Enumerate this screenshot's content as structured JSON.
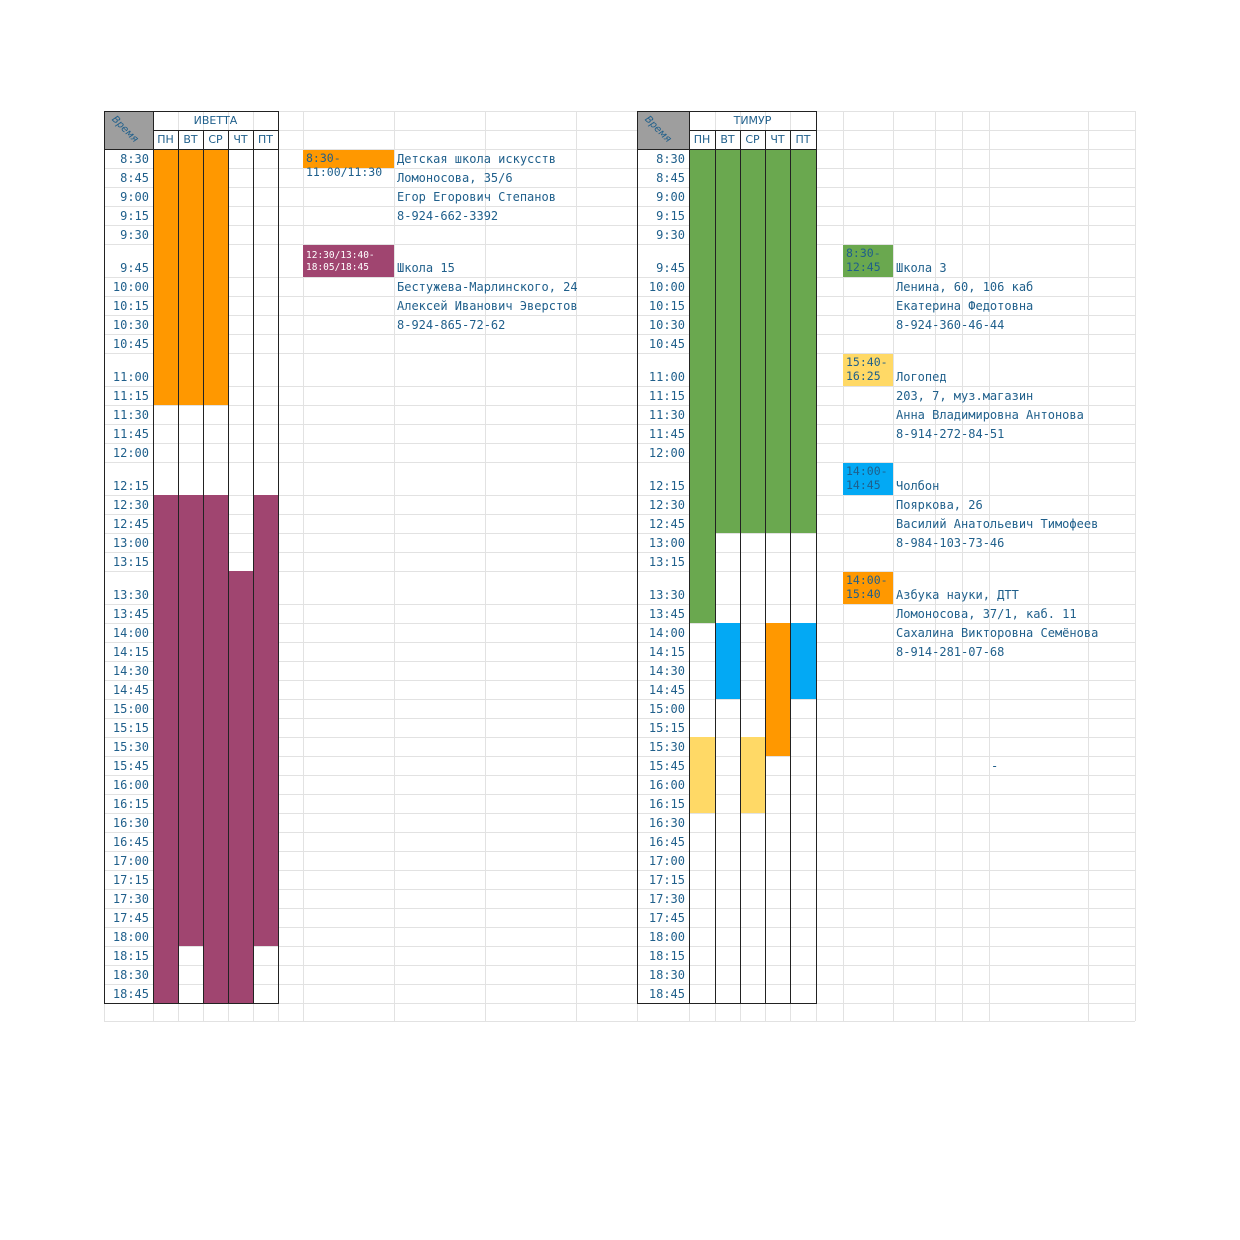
{
  "colors": {
    "orange": "#ff9800",
    "plum": "#a04570",
    "green": "#6aa84f",
    "blue": "#03a9f4",
    "yellow": "#ffd966",
    "header_gray": "#9e9e9e",
    "text": "#1f5f8b"
  },
  "time_header": "Время",
  "days": [
    "ПН",
    "ВТ",
    "СР",
    "ЧТ",
    "ПТ"
  ],
  "times": [
    "8:30",
    "8:45",
    "9:00",
    "9:15",
    "9:30",
    "9:45",
    "10:00",
    "10:15",
    "10:30",
    "10:45",
    "11:00",
    "11:15",
    "11:30",
    "11:45",
    "12:00",
    "12:15",
    "12:30",
    "12:45",
    "13:00",
    "13:15",
    "13:30",
    "13:45",
    "14:00",
    "14:15",
    "14:30",
    "14:45",
    "15:00",
    "15:15",
    "15:30",
    "15:45",
    "16:00",
    "16:15",
    "16:30",
    "16:45",
    "17:00",
    "17:15",
    "17:30",
    "17:45",
    "18:00",
    "18:15",
    "18:30",
    "18:45"
  ],
  "left": {
    "name": "ИВЕТТА",
    "activities": [
      {
        "badge": "8:30-\n11:00/11:30",
        "badge_color": "orange",
        "badge_text_color": "#1f5f8b",
        "lines": [
          "Детская школа искусств",
          "Ломоносова, 35/6",
          "Егор Егорович Степанов",
          "8-924-662-3392"
        ]
      },
      {
        "badge": "12:30/13:40-\n18:05/18:45",
        "badge_color": "plum",
        "badge_text_color": "#ffffff",
        "lines": [
          "Школа 15",
          "Бестужева-Марлинского, 24",
          "Алексей Иванович Эверстов",
          "8-924-865-72-62"
        ]
      }
    ]
  },
  "right": {
    "name": "ТИМУР",
    "activities": [
      {
        "badge": "8:30-\n12:45",
        "badge_color": "green",
        "badge_text_color": "#1f5f8b",
        "lines": [
          "Школа 3",
          "Ленина, 60, 106 каб",
          "Екатерина Федотовна",
          "8-924-360-46-44"
        ]
      },
      {
        "badge": "15:40-\n16:25",
        "badge_color": "yellow",
        "badge_text_color": "#1f5f8b",
        "lines": [
          "Логопед",
          "203, 7, муз.магазин",
          "Анна Владимировна Антонова",
          "8-914-272-84-51"
        ]
      },
      {
        "badge": "14:00-\n14:45",
        "badge_color": "blue",
        "badge_text_color": "#1f5f8b",
        "lines": [
          "Чолбон",
          "Пояркова, 26",
          "Василий Анатольевич Тимофеев",
          "8-984-103-73-46"
        ]
      },
      {
        "badge": "14:00-\n15:40",
        "badge_color": "orange",
        "badge_text_color": "#1f5f8b",
        "lines": [
          "Азбука науки, ДТТ",
          "Ломоносова, 37/1, каб. 11",
          "Сахалина Викторовна Семёнова",
          "8-914-281-07-68"
        ]
      }
    ]
  },
  "stray_mark": "-"
}
